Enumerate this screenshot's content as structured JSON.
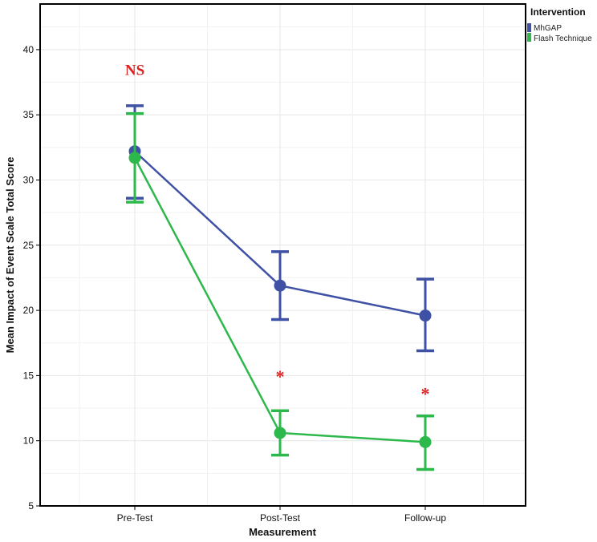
{
  "chart_data": {
    "type": "line",
    "title": "",
    "xlabel": "Measurement",
    "ylabel": "Mean Impact of Event Scale Total Score",
    "categories": [
      "Pre-Test",
      "Post-Test",
      "Follow-up"
    ],
    "ylim": [
      5,
      43.5
    ],
    "yticks": [
      5,
      10,
      15,
      20,
      25,
      30,
      35,
      40
    ],
    "grid": true,
    "legend": {
      "title": "Intervention",
      "position": "top-right"
    },
    "series": [
      {
        "name": "MhGAP",
        "color": "#3f51a5",
        "values": [
          32.2,
          21.9,
          19.6
        ],
        "err_low": [
          28.6,
          19.3,
          16.9
        ],
        "err_high": [
          35.7,
          24.5,
          22.4
        ]
      },
      {
        "name": "Flash Technique",
        "color": "#2db84b",
        "values": [
          31.7,
          10.6,
          9.9
        ],
        "err_low": [
          28.3,
          8.9,
          7.8
        ],
        "err_high": [
          35.1,
          12.3,
          11.9
        ]
      }
    ],
    "annotations": [
      {
        "text": "NS",
        "category": "Pre-Test",
        "y": 38.5,
        "color": "#e02020"
      },
      {
        "text": "*",
        "category": "Post-Test",
        "y": 15.2,
        "color": "#e02020"
      },
      {
        "text": "*",
        "category": "Follow-up",
        "y": 13.9,
        "color": "#e02020"
      }
    ]
  }
}
